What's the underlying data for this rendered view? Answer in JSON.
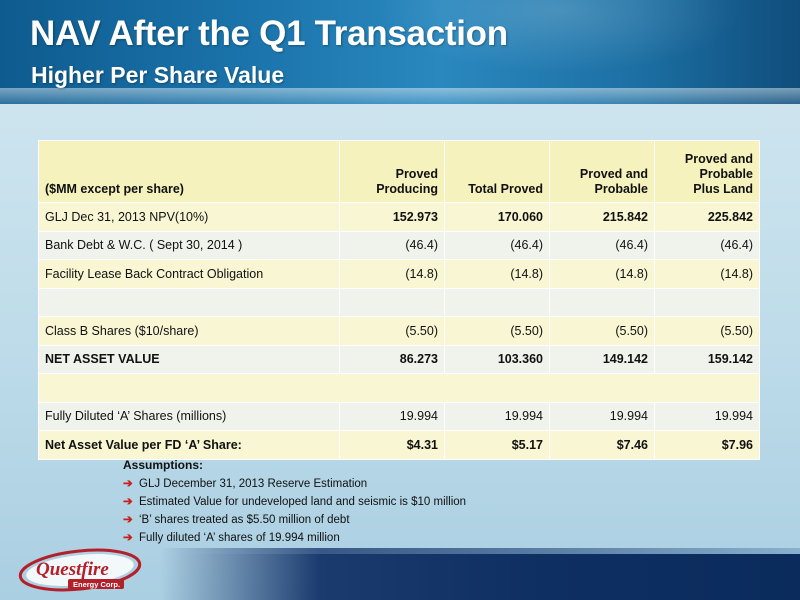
{
  "header": {
    "title": "NAV After the Q1 Transaction",
    "subtitle": "Higher Per Share Value"
  },
  "table": {
    "label_header": "($MM except per share)",
    "columns": [
      "Proved\nProducing",
      "Total Proved",
      "Proved and\nProbable",
      "Proved and\nProbable\nPlus Land"
    ],
    "rows": [
      {
        "label": "GLJ Dec 31, 2013 NPV(10%)",
        "values": [
          "152.973",
          "170.060",
          "215.842",
          "225.842"
        ],
        "bold_values": true
      },
      {
        "label": "Bank Debt & W.C. ( Sept 30, 2014 )",
        "values": [
          "(46.4)",
          "(46.4)",
          "(46.4)",
          "(46.4)"
        ]
      },
      {
        "label": "Facility Lease Back Contract Obligation",
        "values": [
          "(14.8)",
          "(14.8)",
          "(14.8)",
          "(14.8)"
        ]
      },
      {
        "label": "",
        "values": [
          "",
          "",
          "",
          ""
        ]
      },
      {
        "label": "Class B Shares ($10/share)",
        "values": [
          "(5.50)",
          "(5.50)",
          "(5.50)",
          "(5.50)"
        ]
      },
      {
        "label": "NET ASSET VALUE",
        "values": [
          "86.273",
          "103.360",
          "149.142",
          "159.142"
        ],
        "bold": true
      },
      {
        "label": "",
        "values": [],
        "merged": true
      },
      {
        "label": "Fully Diluted ‘A’ Shares (millions)",
        "values": [
          "19.994",
          "19.994",
          "19.994",
          "19.994"
        ]
      },
      {
        "label": "Net Asset Value per FD ‘A’ Share:",
        "values": [
          "$4.31",
          "$5.17",
          "$7.46",
          "$7.96"
        ],
        "bold": true
      }
    ]
  },
  "assumptions": {
    "heading": "Assumptions:",
    "items": [
      "GLJ  December 31, 2013 Reserve Estimation",
      "Estimated Value for undeveloped land and seismic is $10 million",
      "‘B’ shares treated as $5.50 million of debt",
      "Fully diluted ‘A’ shares of 19.994 million"
    ]
  },
  "logo": {
    "text_main": "Questfire",
    "text_sub": "Energy Corp."
  },
  "colors": {
    "header_blue": "#1a73aa",
    "table_header": "#f6f2bd",
    "row_yellow": "#f8f6d3",
    "row_pale": "#eff3ec",
    "bullet_red": "#c8201a",
    "logo_red": "#b3202a"
  }
}
